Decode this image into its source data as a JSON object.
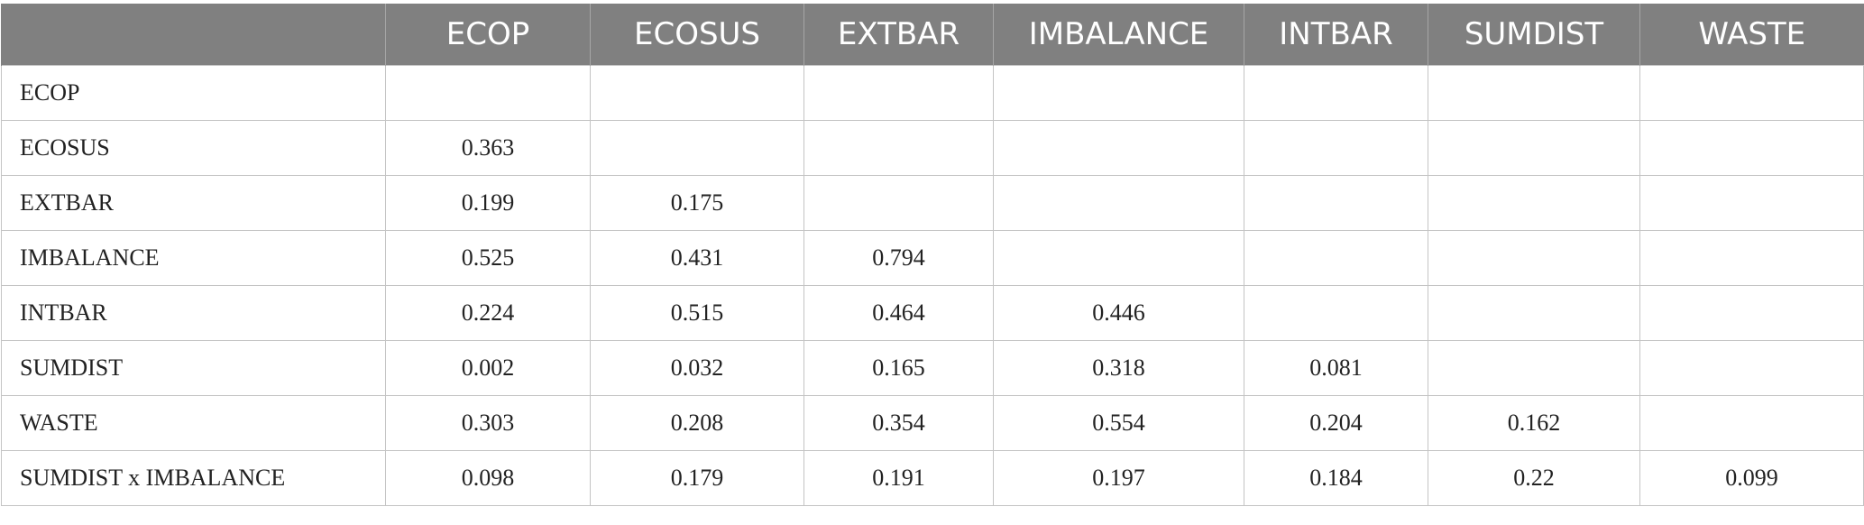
{
  "table": {
    "columns": [
      "ECOP",
      "ECOSUS",
      "EXTBAR",
      "IMBALANCE",
      "INTBAR",
      "SUMDIST",
      "WASTE"
    ],
    "rows": [
      {
        "label": "ECOP",
        "cells": [
          null,
          null,
          null,
          null,
          null,
          null,
          null
        ]
      },
      {
        "label": "ECOSUS",
        "cells": [
          0.363,
          null,
          null,
          null,
          null,
          null,
          null
        ]
      },
      {
        "label": "EXTBAR",
        "cells": [
          0.199,
          0.175,
          null,
          null,
          null,
          null,
          null
        ]
      },
      {
        "label": "IMBALANCE",
        "cells": [
          0.525,
          0.431,
          0.794,
          null,
          null,
          null,
          null
        ]
      },
      {
        "label": "INTBAR",
        "cells": [
          0.224,
          0.515,
          0.464,
          0.446,
          null,
          null,
          null
        ]
      },
      {
        "label": "SUMDIST",
        "cells": [
          0.002,
          0.032,
          0.165,
          0.318,
          0.081,
          null,
          null
        ]
      },
      {
        "label": "WASTE",
        "cells": [
          0.303,
          0.208,
          0.354,
          0.554,
          0.204,
          0.162,
          null
        ]
      },
      {
        "label": "SUMDIST x IMBALANCE",
        "cells": [
          0.098,
          0.179,
          0.191,
          0.197,
          0.184,
          0.22,
          0.099
        ]
      }
    ]
  }
}
